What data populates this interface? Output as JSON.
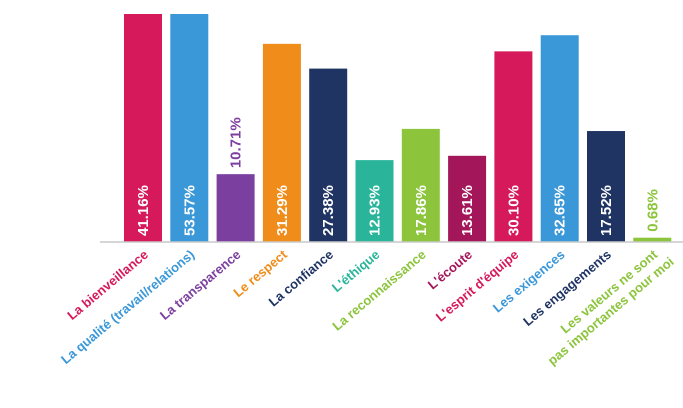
{
  "chart_data": {
    "type": "bar",
    "categories": [
      "La bienveillance",
      "La qualité (travail/relations)",
      "La transparence",
      "Le respect",
      "La confiance",
      "L'éthique",
      "La reconnaissance",
      "L'écoute",
      "L'esprit d'équipe",
      "Les exigences",
      "Les engagements",
      "Les valeurs ne sont pas importantes pour moi"
    ],
    "values": [
      41.16,
      53.57,
      10.71,
      31.29,
      27.38,
      12.93,
      17.86,
      13.61,
      30.1,
      32.65,
      17.52,
      0.68
    ],
    "value_labels": [
      "41.16%",
      "53.57%",
      "10.71%",
      "31.29%",
      "27.38%",
      "12.93%",
      "17.86%",
      "13.61%",
      "30.10%",
      "32.65%",
      "17.52%",
      "0.68%"
    ],
    "colors": [
      "#d6195b",
      "#3a97d8",
      "#7b3fa0",
      "#f08c1a",
      "#1f3463",
      "#2ab59a",
      "#8cc43c",
      "#a3175a",
      "#d6195b",
      "#3a97d8",
      "#1f3463",
      "#8cc43c"
    ],
    "ylim": [
      0,
      36
    ]
  }
}
